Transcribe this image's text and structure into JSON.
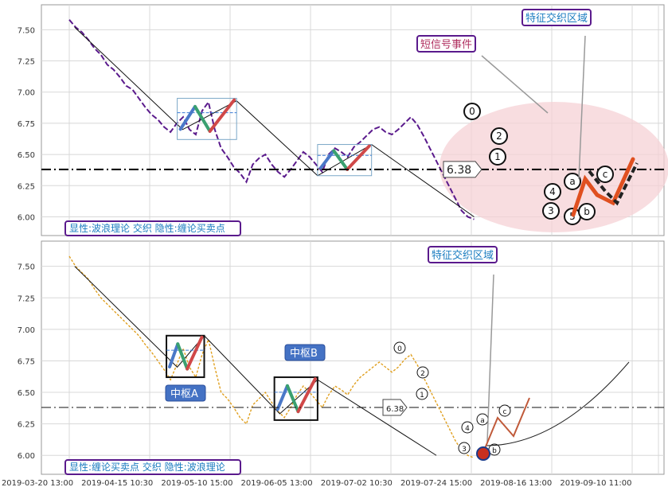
{
  "chart_data": [
    {
      "type": "line",
      "panel": "top",
      "ylim": [
        5.85,
        7.7
      ],
      "yticks": [
        "7.50",
        "7.25",
        "7.00",
        "6.75",
        "6.50",
        "6.25",
        "6.00"
      ],
      "ytick_values": [
        7.5,
        7.25,
        7.0,
        6.75,
        6.5,
        6.25,
        6.0
      ],
      "grid": true,
      "series_color": "#5a1a8c",
      "price_level": 6.38,
      "price_level_label": "6.38",
      "legend_box": "显性:波浪理论 交织 隐性:缠论买卖点",
      "callouts": [
        "特征交织区域",
        "短信号事件"
      ],
      "wave_labels": [
        "0",
        "2",
        "1",
        "4",
        "3",
        "5",
        "a",
        "b",
        "c"
      ],
      "centers": [
        {
          "t": [
            0.2,
            0.31
          ],
          "price": [
            6.62,
            6.95
          ]
        },
        {
          "t": [
            0.46,
            0.56
          ],
          "price": [
            6.33,
            6.58
          ]
        }
      ],
      "trend_path": [
        {
          "t": 0.01,
          "price": 7.52
        },
        {
          "t": 0.21,
          "price": 6.7
        },
        {
          "t": 0.31,
          "price": 6.93
        },
        {
          "t": 0.46,
          "price": 6.33
        },
        {
          "t": 0.56,
          "price": 6.58
        },
        {
          "t": 0.75,
          "price": 6.0
        }
      ],
      "prices": [
        7.58,
        7.52,
        7.48,
        7.42,
        7.35,
        7.3,
        7.22,
        7.18,
        7.12,
        7.05,
        7.02,
        6.95,
        6.88,
        6.82,
        6.78,
        6.72,
        6.68,
        6.75,
        6.8,
        6.7,
        6.66,
        6.85,
        6.92,
        6.7,
        6.55,
        6.48,
        6.4,
        6.35,
        6.28,
        6.42,
        6.47,
        6.5,
        6.42,
        6.36,
        6.32,
        6.38,
        6.45,
        6.52,
        6.48,
        6.42,
        6.36,
        6.5,
        6.55,
        6.52,
        6.48,
        6.56,
        6.6,
        6.65,
        6.7,
        6.72,
        6.68,
        6.66,
        6.7,
        6.75,
        6.8,
        6.74,
        6.65,
        6.55,
        6.45,
        6.35,
        6.25,
        6.15,
        6.05,
        6.0,
        5.98
      ]
    },
    {
      "type": "line",
      "panel": "bottom",
      "ylim": [
        5.85,
        7.7
      ],
      "yticks": [
        "7.50",
        "7.25",
        "7.00",
        "6.75",
        "6.50",
        "6.25",
        "6.00"
      ],
      "ytick_values": [
        7.5,
        7.25,
        7.0,
        6.75,
        6.5,
        6.25,
        6.0
      ],
      "grid": true,
      "series_color": "#e0a020",
      "price_level": 6.38,
      "price_level_label": "6.38",
      "legend_box": "显性:缠论买卖点 交织 隐性:波浪理论",
      "callouts": [
        "特征交织区域"
      ],
      "center_labels": [
        "中枢A",
        "中枢B"
      ],
      "wave_labels": [
        "0",
        "2",
        "1",
        "4",
        "3",
        "1",
        "b",
        "a",
        "c"
      ],
      "centers": [
        {
          "t": [
            0.18,
            0.25
          ],
          "price": [
            6.62,
            6.95
          ]
        },
        {
          "t": [
            0.38,
            0.46
          ],
          "price": [
            6.28,
            6.62
          ]
        }
      ],
      "trend_path": [
        {
          "t": 0.01,
          "price": 7.5
        },
        {
          "t": 0.2,
          "price": 6.7
        },
        {
          "t": 0.25,
          "price": 6.95
        },
        {
          "t": 0.39,
          "price": 6.33
        },
        {
          "t": 0.46,
          "price": 6.6
        },
        {
          "t": 0.68,
          "price": 6.0
        }
      ],
      "prices": [
        7.58,
        7.5,
        7.45,
        7.4,
        7.32,
        7.25,
        7.2,
        7.15,
        7.1,
        7.05,
        7.0,
        6.95,
        6.88,
        6.82,
        6.75,
        6.68,
        6.6,
        6.72,
        6.85,
        6.7,
        6.62,
        6.8,
        6.92,
        6.7,
        6.5,
        6.45,
        6.38,
        6.3,
        6.25,
        6.4,
        6.45,
        6.5,
        6.42,
        6.35,
        6.3,
        6.38,
        6.48,
        6.55,
        6.5,
        6.44,
        6.38,
        6.48,
        6.55,
        6.52,
        6.48,
        6.56,
        6.62,
        6.66,
        6.7,
        6.74,
        6.7,
        6.66,
        6.7,
        6.76,
        6.8,
        6.72,
        6.62,
        6.52,
        6.42,
        6.32,
        6.22,
        6.12,
        6.04,
        6.0,
        5.98
      ],
      "xticks": [
        "2019-03-20 13:00",
        "2019-04-15 10:30",
        "2019-05-10 15:00",
        "2019-06-05 13:00",
        "2019-07-02 10:30",
        "2019-07-24 15:00",
        "2019-08-16 13:00",
        "2019-09-10 11:00"
      ],
      "xtick_positions": [
        0.0,
        0.15,
        0.3,
        0.45,
        0.6,
        0.75,
        0.9,
        1.05
      ]
    }
  ]
}
